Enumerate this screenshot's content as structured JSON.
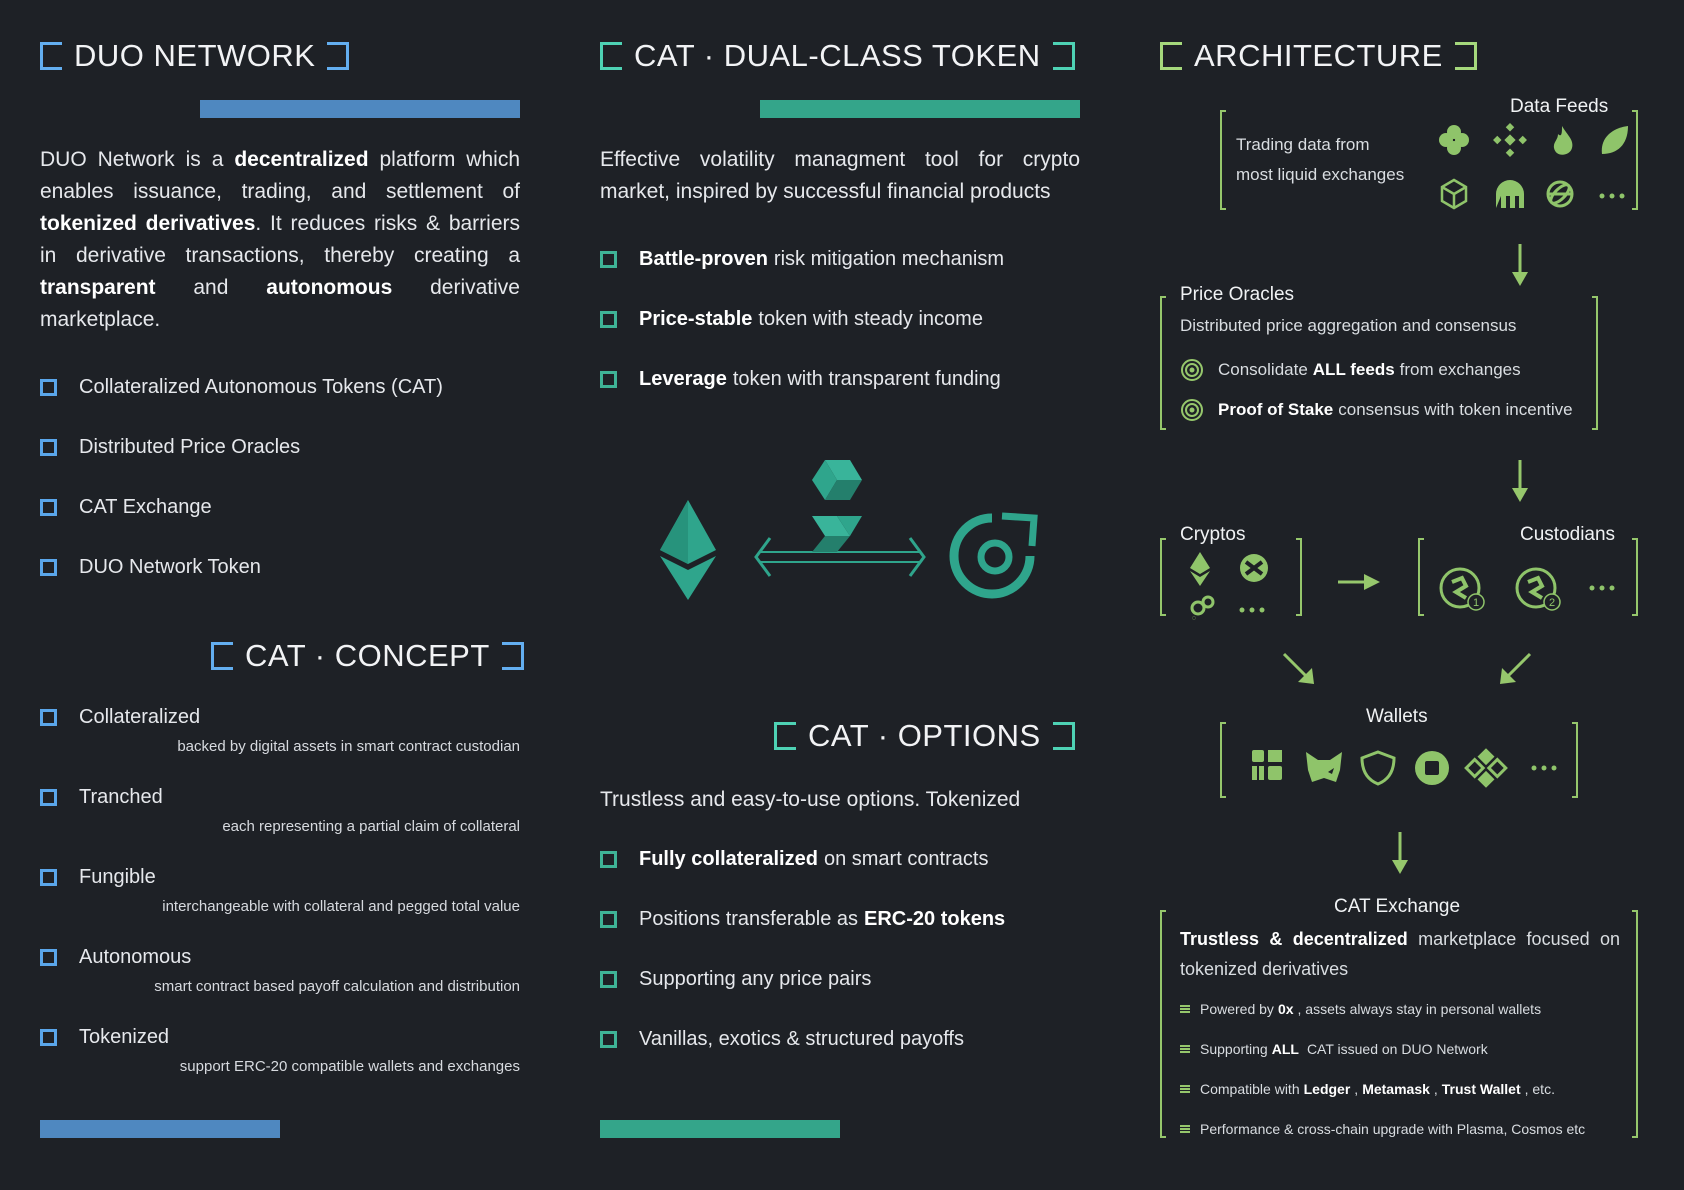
{
  "duo": {
    "title": "DUO NETWORK",
    "para": [
      {
        "t": "DUO Network is a ",
        "b": false
      },
      {
        "t": "decentralized",
        "b": true
      },
      {
        "t": " platform which enables issuance, trading, and settlement of ",
        "b": false
      },
      {
        "t": "tokenized derivatives",
        "b": true
      },
      {
        "t": ". It reduces risks & barriers in derivative transactions, thereby creating a ",
        "b": false
      },
      {
        "t": "transparent",
        "b": true
      },
      {
        "t": " and ",
        "b": false
      },
      {
        "t": "autonomous",
        "b": true
      },
      {
        "t": " derivative marketplace.",
        "b": false
      }
    ],
    "items": [
      "Collateralized Autonomous Tokens (CAT)",
      "Distributed Price Oracles",
      "CAT Exchange",
      "DUO Network Token"
    ]
  },
  "concept": {
    "title": "CAT · CONCEPT",
    "items": [
      {
        "label": "Collateralized",
        "sub": "backed by digital assets in smart contract custodian"
      },
      {
        "label": "Tranched",
        "sub": "each representing a partial claim of collateral"
      },
      {
        "label": "Fungible",
        "sub": "interchangeable with collateral and pegged total value"
      },
      {
        "label": "Autonomous",
        "sub": "smart contract based payoff calculation and distribution"
      },
      {
        "label": "Tokenized",
        "sub": "support ERC-20 compatible wallets and exchanges"
      }
    ]
  },
  "dual": {
    "title": "CAT · DUAL-CLASS TOKEN",
    "intro": "Effective volatility managment tool for crypto market, inspired by successful financial products",
    "items": [
      {
        "bold": "Battle-proven",
        "rest": "risk mitigation mechanism"
      },
      {
        "bold": "Price-stable",
        "rest": "token with steady income"
      },
      {
        "bold": "Leverage",
        "rest": "token with transparent funding"
      }
    ]
  },
  "options": {
    "title": "CAT · OPTIONS",
    "intro": "Trustless and easy-to-use options. Tokenized",
    "items": [
      {
        "pre": "",
        "bold": "Fully collateralized",
        "rest": "on smart contracts"
      },
      {
        "pre": "Positions transferable as",
        "bold": "ERC-20 tokens",
        "rest": ""
      },
      {
        "pre": "Supporting any price pairs",
        "bold": "",
        "rest": ""
      },
      {
        "pre": "Vanillas, exotics & structured payoffs",
        "bold": "",
        "rest": ""
      }
    ]
  },
  "arch": {
    "title": "ARCHITECTURE",
    "feeds_title": "Data  Feeds",
    "feeds_text": [
      "Trading data from",
      "most liquid exchanges"
    ],
    "oracles_title": "Price Oracles",
    "oracles_sub": "Distributed price aggregation and consensus",
    "oracles_items": [
      {
        "pre": "Consolidate",
        "bold": "ALL feeds",
        "rest": "from exchanges"
      },
      {
        "pre": "",
        "bold": "Proof of Stake",
        "rest": "consensus with token incentive"
      }
    ],
    "cryptos_title": "Cryptos",
    "custodians_title": "Custodians",
    "wallets_title": "Wallets",
    "exchange_title": "CAT Exchange",
    "exchange_desc_bold": "Trustless & decentralized",
    "exchange_desc_rest": "marketplace focused on tokenized derivatives",
    "exchange_items": [
      [
        {
          "t": "Powered by",
          "b": false
        },
        {
          "t": "0x",
          "b": true
        },
        {
          "t": ", assets always stay in personal wallets",
          "b": false
        }
      ],
      [
        {
          "t": "Supporting",
          "b": false
        },
        {
          "t": "ALL",
          "b": true
        },
        {
          "t": "CAT issued on DUO Network",
          "b": false
        }
      ],
      [
        {
          "t": "Compatible with",
          "b": false
        },
        {
          "t": "Ledger",
          "b": true
        },
        {
          "t": ",",
          "b": false
        },
        {
          "t": "Metamask",
          "b": true
        },
        {
          "t": ",",
          "b": false
        },
        {
          "t": "Trust Wallet",
          "b": true
        },
        {
          "t": ", etc.",
          "b": false
        }
      ],
      [
        {
          "t": "Performance & cross-chain upgrade with Plasma, Cosmos etc",
          "b": false
        }
      ]
    ],
    "custodian_badges": [
      "1",
      "2"
    ],
    "more": "···"
  },
  "colors": {
    "blue": "#4f88c0",
    "teal": "#34a58a",
    "green": "#96c76c",
    "bg": "#1e2126"
  }
}
